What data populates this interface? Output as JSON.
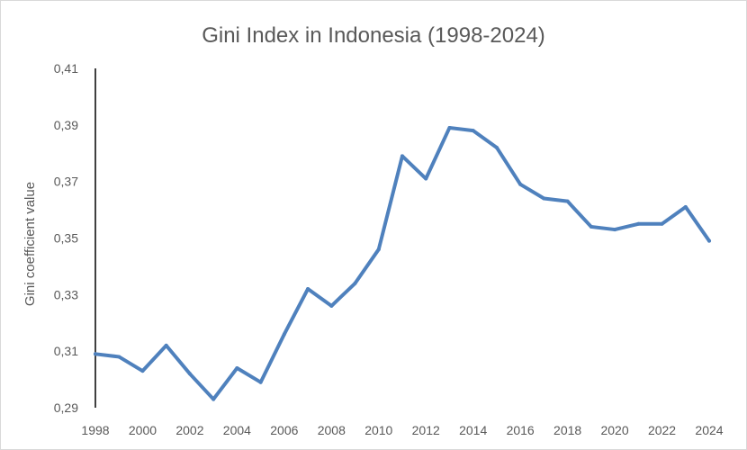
{
  "chart_data": {
    "type": "line",
    "title": "Gini Index in Indonesia (1998-2024)",
    "xlabel": "",
    "ylabel": "Gini coefficient value",
    "ylim": [
      0.29,
      0.41
    ],
    "xlim": [
      1998,
      2024
    ],
    "y_ticks": [
      "0,29",
      "0,31",
      "0,33",
      "0,35",
      "0,37",
      "0,39",
      "0,41"
    ],
    "x_ticks": [
      "1998",
      "2000",
      "2002",
      "2004",
      "2006",
      "2008",
      "2010",
      "2012",
      "2014",
      "2016",
      "2018",
      "2020",
      "2022",
      "2024"
    ],
    "grid": false,
    "legend": "none",
    "line_color": "#4f81bd",
    "x": [
      1998,
      1999,
      2000,
      2001,
      2002,
      2003,
      2004,
      2005,
      2006,
      2007,
      2008,
      2009,
      2010,
      2011,
      2012,
      2013,
      2014,
      2015,
      2016,
      2017,
      2018,
      2019,
      2020,
      2021,
      2022,
      2023,
      2024
    ],
    "values": [
      0.309,
      0.308,
      0.303,
      0.312,
      0.302,
      0.293,
      0.304,
      0.299,
      0.316,
      0.332,
      0.326,
      0.334,
      0.346,
      0.379,
      0.371,
      0.389,
      0.388,
      0.382,
      0.369,
      0.364,
      0.363,
      0.354,
      0.353,
      0.355,
      0.355,
      0.361,
      0.349
    ]
  }
}
